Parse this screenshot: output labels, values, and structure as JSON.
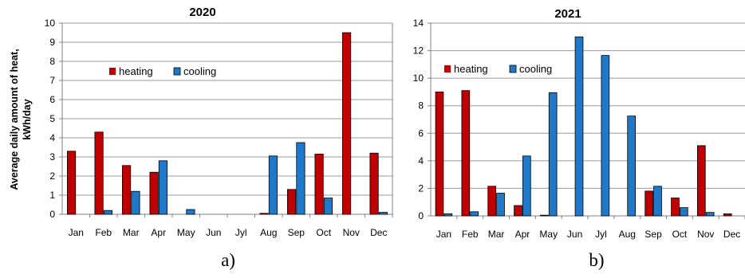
{
  "colors": {
    "heating": "#c00000",
    "cooling": "#1f78c8",
    "grid": "#9a9a9a",
    "axis": "#808080"
  },
  "ylabel_line1": "Average daily amount of heat,",
  "ylabel_line2": "kWh/day",
  "chart_data": [
    {
      "type": "bar",
      "title": "2020",
      "caption": "a)",
      "categories": [
        "Jan",
        "Feb",
        "Mar",
        "Apr",
        "May",
        "Jun",
        "Jyl",
        "Aug",
        "Sep",
        "Oct",
        "Nov",
        "Dec"
      ],
      "ylim": [
        0,
        10
      ],
      "yticks": [
        0,
        1,
        2,
        3,
        4,
        5,
        6,
        7,
        8,
        9,
        10
      ],
      "grid": true,
      "legend_position": "upper-left",
      "series": [
        {
          "name": "heating",
          "values": [
            3.3,
            4.3,
            2.55,
            2.2,
            0,
            0,
            0,
            0.05,
            1.3,
            3.15,
            9.5,
            3.2
          ]
        },
        {
          "name": "cooling",
          "values": [
            0,
            0.2,
            1.2,
            2.8,
            0.25,
            0,
            0,
            3.05,
            3.75,
            0.85,
            0,
            0.1
          ]
        }
      ]
    },
    {
      "type": "bar",
      "title": "2021",
      "caption": "b)",
      "categories": [
        "Jan",
        "Feb",
        "Mar",
        "Apr",
        "May",
        "Jun",
        "Jyl",
        "Aug",
        "Sep",
        "Oct",
        "Nov",
        "Dec"
      ],
      "ylim": [
        0,
        14
      ],
      "yticks": [
        0,
        2,
        4,
        6,
        8,
        10,
        12,
        14
      ],
      "grid": true,
      "legend_position": "upper-left",
      "series": [
        {
          "name": "heating",
          "values": [
            9.0,
            9.1,
            2.15,
            0.75,
            0.05,
            0,
            0,
            0,
            1.8,
            1.3,
            5.1,
            0.15
          ]
        },
        {
          "name": "cooling",
          "values": [
            0.15,
            0.3,
            1.65,
            4.35,
            8.95,
            13.0,
            11.65,
            7.25,
            2.15,
            0.6,
            0.25,
            0
          ]
        }
      ]
    }
  ]
}
